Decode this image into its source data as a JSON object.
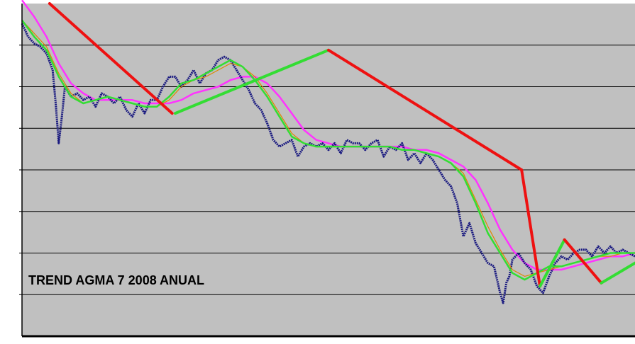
{
  "chart_data": {
    "type": "line",
    "title": "TREND AGMA 7 2008 ANUAL",
    "xlabel": "",
    "ylabel": "",
    "grid": true,
    "colors": {
      "plot_background": "#c0c0c0",
      "gridline": "#000000",
      "price": "#1a1a80",
      "ma_fast_green": "#33dd33",
      "ma_fast_orange": "#dd8800",
      "ma_slow_magenta": "#ff33ff",
      "trend_down": "#ee1111",
      "trend_up": "#33dd33"
    },
    "x_range": [
      0,
      100
    ],
    "y_range": [
      0,
      100
    ],
    "gridlines_y": [
      87.5,
      75,
      62.5,
      50,
      37.5,
      25,
      12.5
    ],
    "series": [
      {
        "role": "price",
        "color": "#1a1a80",
        "x": [
          0,
          1,
          2,
          3,
          4,
          5,
          5.5,
          6,
          6.5,
          7,
          8,
          9,
          10,
          11,
          12,
          13,
          14,
          15,
          16,
          17,
          18,
          19,
          20,
          21,
          22,
          23,
          24,
          25,
          26,
          27,
          28,
          29,
          30,
          31,
          32,
          33,
          34,
          35,
          36,
          37,
          38,
          39,
          40,
          41,
          42,
          43,
          44,
          45,
          46,
          47,
          48,
          49,
          50,
          51,
          52,
          53,
          54,
          55,
          56,
          57,
          58,
          59,
          60,
          61,
          62,
          63,
          64,
          65,
          66,
          67,
          68,
          69,
          70,
          71,
          72,
          73,
          74,
          75,
          76,
          77,
          78,
          78.5,
          79,
          79.5,
          80,
          81,
          82,
          83,
          84,
          85,
          86,
          87,
          88,
          89,
          90,
          91,
          92,
          93,
          94,
          95,
          96,
          97,
          98,
          99,
          100
        ],
        "values": [
          94,
          90,
          88,
          87,
          85,
          80,
          70,
          58,
          66,
          75,
          72,
          73,
          71,
          72,
          69,
          73,
          72,
          70,
          72,
          68,
          66,
          70,
          67,
          71,
          71,
          75,
          78,
          78,
          75,
          77,
          80,
          76,
          79,
          80,
          83,
          84,
          83,
          80,
          77,
          74,
          70,
          68,
          64,
          59,
          57,
          58,
          59,
          54,
          57,
          58,
          57,
          58,
          56,
          58,
          55,
          59,
          58,
          58,
          56,
          58,
          59,
          54,
          57,
          56,
          58,
          53,
          55,
          52,
          55,
          53,
          50,
          47,
          45,
          40,
          30,
          34,
          28,
          25,
          22,
          21,
          13,
          10,
          16,
          18,
          23,
          25,
          22,
          20,
          15,
          13,
          18,
          22,
          24,
          23,
          25,
          26,
          26,
          24,
          27,
          25,
          27,
          25,
          26,
          25,
          24
        ]
      },
      {
        "role": "ma-fast-green",
        "color": "#33dd33",
        "x": [
          0,
          2,
          4,
          6,
          8,
          10,
          12,
          14,
          16,
          18,
          20,
          22,
          24,
          26,
          28,
          30,
          32,
          34,
          36,
          38,
          40,
          42,
          44,
          46,
          48,
          50,
          52,
          54,
          56,
          58,
          60,
          62,
          64,
          66,
          68,
          70,
          72,
          74,
          76,
          78,
          80,
          82,
          84,
          86,
          88,
          90,
          92,
          94,
          96,
          98,
          100
        ],
        "values": [
          95,
          90,
          86,
          78,
          72,
          70,
          71,
          72,
          71,
          70,
          69,
          69,
          72,
          76,
          77,
          79,
          81,
          83,
          81,
          77,
          72,
          66,
          60,
          58,
          57,
          57,
          57,
          57,
          57,
          57,
          57,
          56,
          56,
          55,
          54,
          52,
          48,
          40,
          31,
          25,
          19,
          17,
          19,
          21,
          21,
          22,
          23,
          24,
          25,
          25,
          25
        ]
      },
      {
        "role": "ma-fast-orange",
        "color": "#dd8800",
        "x": [
          0,
          2,
          4,
          6,
          8,
          10,
          12,
          14,
          16,
          18,
          20,
          22,
          24,
          26,
          28,
          30,
          32,
          34,
          36,
          38,
          40,
          42,
          44,
          46,
          48,
          50,
          52,
          54,
          56,
          58,
          60,
          62,
          64,
          66,
          68,
          70,
          72,
          74,
          76,
          78,
          80,
          82,
          84,
          86,
          88,
          90,
          92,
          94,
          96,
          98,
          100
        ],
        "values": [
          95,
          91,
          87,
          79,
          73,
          70,
          71,
          72,
          71,
          70,
          69,
          69,
          71,
          75,
          77,
          78,
          80,
          82,
          81,
          78,
          73,
          67,
          61,
          58,
          57,
          57,
          57,
          57,
          57,
          57,
          57,
          56,
          56,
          55,
          54,
          52,
          49,
          41,
          33,
          26,
          20,
          18,
          19,
          20,
          21,
          22,
          23,
          24,
          24,
          25,
          25
        ]
      },
      {
        "role": "ma-slow-magenta",
        "color": "#ff33ff",
        "x": [
          0,
          2,
          4,
          6,
          8,
          10,
          12,
          14,
          16,
          18,
          20,
          22,
          24,
          26,
          28,
          30,
          32,
          34,
          36,
          38,
          40,
          42,
          44,
          46,
          48,
          50,
          52,
          54,
          56,
          58,
          60,
          62,
          64,
          66,
          68,
          70,
          72,
          74,
          76,
          78,
          80,
          82,
          84,
          86,
          88,
          90,
          92,
          94,
          96,
          98,
          100
        ],
        "values": [
          101,
          96,
          90,
          82,
          76,
          73,
          71,
          71,
          71,
          71,
          70,
          70,
          70,
          71,
          73,
          74,
          75,
          77,
          78,
          78,
          76,
          72,
          67,
          62,
          59,
          58,
          57,
          57,
          57,
          57,
          57,
          57,
          56,
          56,
          55,
          53,
          51,
          47,
          40,
          32,
          26,
          22,
          20,
          20,
          20,
          21,
          22,
          23,
          24,
          24,
          25
        ]
      }
    ],
    "trendlines": [
      {
        "direction": "down",
        "color": "#ee1111",
        "x1": 4.5,
        "y1": 100,
        "x2": 24.5,
        "y2": 67
      },
      {
        "direction": "up",
        "color": "#33dd33",
        "x1": 25,
        "y1": 67,
        "x2": 50,
        "y2": 86
      },
      {
        "direction": "down",
        "color": "#ee1111",
        "x1": 50,
        "y1": 86,
        "x2": 81.5,
        "y2": 50
      },
      {
        "direction": "down",
        "color": "#ee1111",
        "x1": 81.5,
        "y1": 50,
        "x2": 84.5,
        "y2": 15
      },
      {
        "direction": "up",
        "color": "#33dd33",
        "x1": 84.5,
        "y1": 15,
        "x2": 88.5,
        "y2": 29
      },
      {
        "direction": "down",
        "color": "#ee1111",
        "x1": 88.5,
        "y1": 29,
        "x2": 94.5,
        "y2": 16
      },
      {
        "direction": "up",
        "color": "#33dd33",
        "x1": 94.5,
        "y1": 16,
        "x2": 100,
        "y2": 22
      }
    ]
  }
}
